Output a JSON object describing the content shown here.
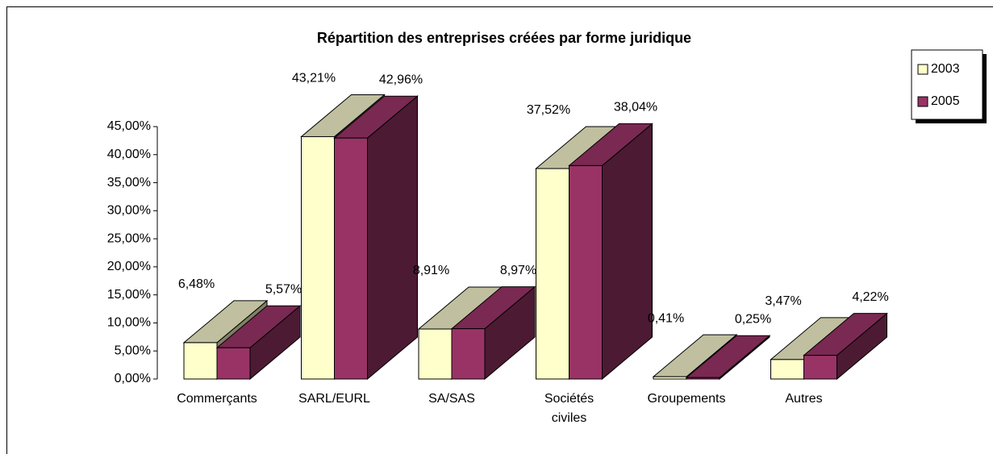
{
  "chart_data": {
    "type": "bar3d",
    "title": "Répartition des entreprises créées par forme juridique",
    "categories": [
      "Commerçants",
      "SARL/EURL",
      "SA/SAS",
      "Sociétés civiles",
      "Groupements",
      "Autres"
    ],
    "series": [
      {
        "name": "2003",
        "color": "#ffffcc",
        "values": [
          6.48,
          43.21,
          8.91,
          37.52,
          0.41,
          3.47
        ],
        "value_labels": [
          "6,48%",
          "43,21%",
          "8,91%",
          "37,52%",
          "0,41%",
          "3,47%"
        ]
      },
      {
        "name": "2005",
        "color": "#993366",
        "values": [
          5.57,
          42.96,
          8.97,
          38.04,
          0.25,
          4.22
        ],
        "value_labels": [
          "5,57%",
          "42,96%",
          "8,97%",
          "38,04%",
          "0,25%",
          "4,22%"
        ]
      }
    ],
    "ylim": [
      0,
      45
    ],
    "yticks": [
      {
        "value": 0,
        "label": "0,00%"
      },
      {
        "value": 5,
        "label": "5,00%"
      },
      {
        "value": 10,
        "label": "10,00%"
      },
      {
        "value": 15,
        "label": "15,00%"
      },
      {
        "value": 20,
        "label": "20,00%"
      },
      {
        "value": 25,
        "label": "25,00%"
      },
      {
        "value": 30,
        "label": "30,00%"
      },
      {
        "value": 35,
        "label": "35,00%"
      },
      {
        "value": 40,
        "label": "40,00%"
      },
      {
        "value": 45,
        "label": "45,00%"
      }
    ],
    "legend": "right"
  }
}
